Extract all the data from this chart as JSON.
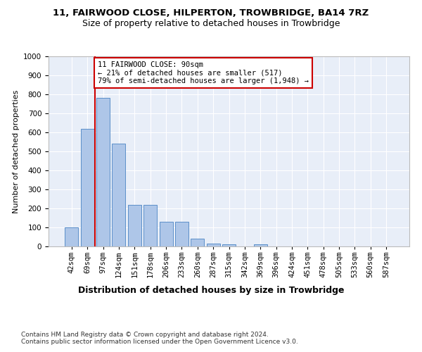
{
  "title1": "11, FAIRWOOD CLOSE, HILPERTON, TROWBRIDGE, BA14 7RZ",
  "title2": "Size of property relative to detached houses in Trowbridge",
  "xlabel": "Distribution of detached houses by size in Trowbridge",
  "ylabel": "Number of detached properties",
  "bar_labels": [
    "42sqm",
    "69sqm",
    "97sqm",
    "124sqm",
    "151sqm",
    "178sqm",
    "206sqm",
    "233sqm",
    "260sqm",
    "287sqm",
    "315sqm",
    "342sqm",
    "369sqm",
    "396sqm",
    "424sqm",
    "451sqm",
    "478sqm",
    "505sqm",
    "533sqm",
    "560sqm",
    "587sqm"
  ],
  "bar_values": [
    100,
    620,
    780,
    540,
    220,
    220,
    130,
    130,
    40,
    15,
    10,
    0,
    10,
    0,
    0,
    0,
    0,
    0,
    0,
    0,
    0
  ],
  "bar_color": "#aec6e8",
  "bar_edgecolor": "#5b8fc9",
  "vline_color": "#cc0000",
  "annotation_text": "11 FAIRWOOD CLOSE: 90sqm\n← 21% of detached houses are smaller (517)\n79% of semi-detached houses are larger (1,948) →",
  "annotation_box_color": "#ffffff",
  "annotation_box_edgecolor": "#cc0000",
  "ylim": [
    0,
    1000
  ],
  "yticks": [
    0,
    100,
    200,
    300,
    400,
    500,
    600,
    700,
    800,
    900,
    1000
  ],
  "footnote": "Contains HM Land Registry data © Crown copyright and database right 2024.\nContains public sector information licensed under the Open Government Licence v3.0.",
  "bg_color": "#e8eef8",
  "title1_fontsize": 9.5,
  "title2_fontsize": 9,
  "xlabel_fontsize": 9,
  "ylabel_fontsize": 8,
  "footnote_fontsize": 6.5,
  "tick_fontsize": 7.5,
  "annot_fontsize": 7.5
}
